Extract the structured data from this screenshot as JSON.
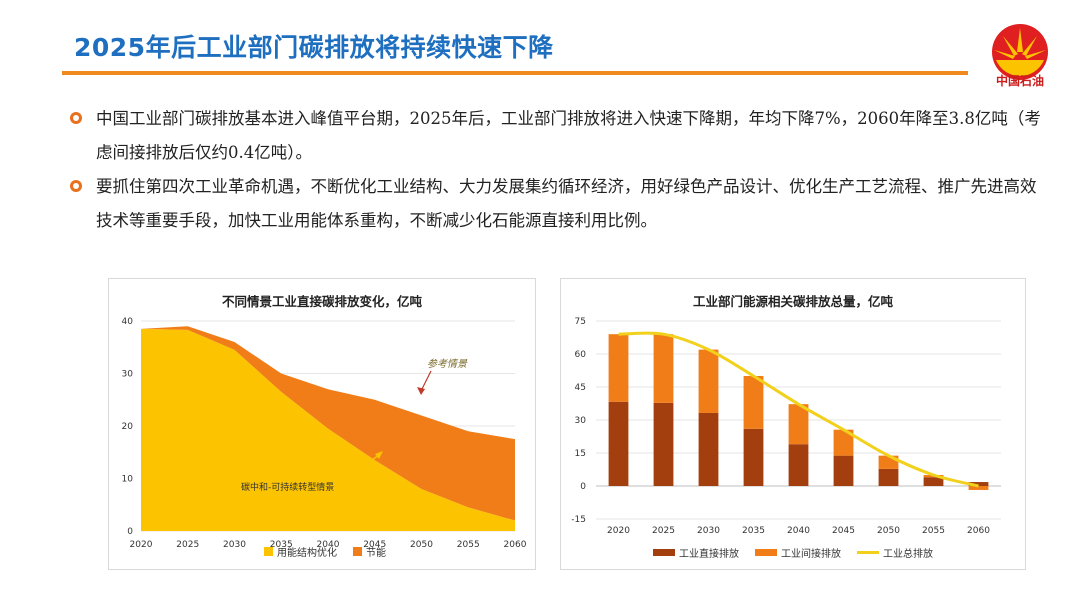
{
  "header": {
    "title": "2025年后工业部门碳排放将持续快速下降"
  },
  "logo": {
    "text": "中国石油"
  },
  "bullets": [
    {
      "text": "中国工业部门碳排放基本进入峰值平台期，2025年后，工业部门排放将进入快速下降期，年均下降7%，2060年降至3.8亿吨（考虑间接排放后仅约0.4亿吨）。"
    },
    {
      "text": "要抓住第四次工业革命机遇，不断优化工业结构、大力发展集约循环经济，用好绿色产品设计、优化生产工艺流程、推广先进高效技术等重要手段，加快工业用能体系重构，不断减少化石能源直接利用比例。"
    }
  ],
  "colors": {
    "title_blue": "#1f6fc0",
    "accent_orange": "#f08a1e",
    "dark_brown": "#a33f0f",
    "orange": "#f07d17",
    "yellow": "#fcc400",
    "line_yellow": "#f2d11c"
  },
  "chart_data": [
    {
      "type": "area",
      "title": "不同情景工业直接碳排放变化，亿吨",
      "x": [
        2020,
        2025,
        2030,
        2035,
        2040,
        2045,
        2050,
        2055,
        2060
      ],
      "ylim": [
        0,
        40
      ],
      "yticks": [
        0,
        10,
        20,
        30,
        40
      ],
      "stacked": true,
      "series": [
        {
          "name": "用能结构优化",
          "color": "#fcc400",
          "values": [
            38.5,
            38.3,
            34.5,
            26.5,
            19.5,
            13.5,
            8,
            4.5,
            2
          ]
        },
        {
          "name": "节能",
          "color": "#f07d17",
          "values": [
            0,
            0.7,
            1.5,
            3.5,
            7.5,
            11.5,
            14,
            14.5,
            15.5
          ]
        }
      ],
      "scenario_totals": {
        "参考情景": [
          38.5,
          39,
          36,
          30,
          27,
          25,
          22,
          19,
          17.5
        ]
      },
      "annotations": [
        "参考情景",
        "碳中和-可持续转型情景"
      ],
      "legend": "bottom"
    },
    {
      "type": "bar",
      "title": "工业部门能源相关碳排放总量，亿吨",
      "categories": [
        "2020",
        "2025",
        "2030",
        "2035",
        "2040",
        "2045",
        "2050",
        "2055",
        "2060"
      ],
      "ylim": [
        -15,
        75
      ],
      "yticks": [
        -15,
        0,
        15,
        30,
        45,
        60,
        75
      ],
      "stacked": true,
      "series": [
        {
          "name": "工业直接排放",
          "color": "#a33f0f",
          "values": [
            38.3,
            37.8,
            33.2,
            26,
            19,
            13.8,
            7.8,
            4,
            1.8
          ]
        },
        {
          "name": "工业间接排放",
          "color": "#f07d17",
          "values": [
            30.7,
            31.2,
            28.8,
            24,
            18.2,
            11.8,
            6,
            1,
            -1.8
          ]
        },
        {
          "name": "工业总排放",
          "type": "line",
          "color": "#f2d11c",
          "values": [
            69,
            69,
            62,
            50,
            37.2,
            25.6,
            13.8,
            5,
            0
          ]
        }
      ],
      "legend": "bottom"
    }
  ]
}
